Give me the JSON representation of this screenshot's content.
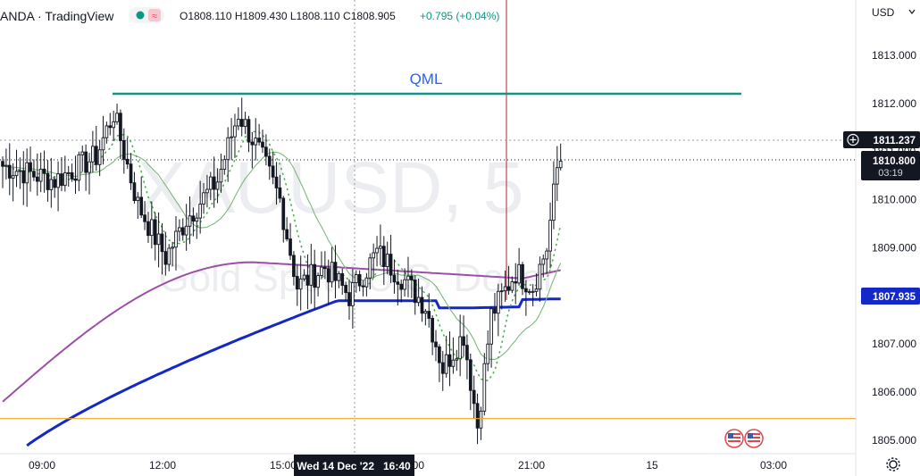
{
  "header": {
    "symbol_text": "ANDA · TradingView",
    "ohlc": "O1808.110 H1809.430 L1808.110 C1808.905",
    "change": "+0.795 (+0.04%)"
  },
  "currency": "USD",
  "watermark": {
    "line1": "XAUUSD, 5",
    "line2": "Gold Spot / U.S. Dollar"
  },
  "annotation": {
    "label": "QML",
    "price": 1812.2
  },
  "crosshair_time_label": "Wed 14 Dec '22   16:40",
  "price_labels": {
    "crosshair": "1811.237",
    "last": "1810.800",
    "countdown": "03:19",
    "ma_200": "1807.935"
  },
  "colors": {
    "up": "#131722",
    "down": "#131722",
    "ma_blue": "#1428c8",
    "ma_purple": "#9c4fa8",
    "ma_green": "#7fb77e",
    "ma_dotted": "#4caf50",
    "qml_line": "#11948a",
    "support": "#f5a623",
    "session_line": "#b22234"
  },
  "chart_data": {
    "type": "candlestick",
    "title": "XAUUSD, 5",
    "subtitle": "Gold Spot / U.S. Dollar",
    "timeframe": "5",
    "ylim": [
      1804.72,
      1814.15
    ],
    "y_ticks": [
      "1805.000",
      "1806.000",
      "1807.000",
      "1808.000",
      "1809.000",
      "1810.000",
      "1811.000",
      "1812.000",
      "1813.000"
    ],
    "x_ticks": [
      "09:00",
      "12:00",
      "15:00",
      "18:00",
      "21:00",
      "15",
      "03:00"
    ],
    "horizontal_lines": [
      {
        "label": "QML",
        "price": 1812.2
      },
      {
        "label": "",
        "price": 1805.45
      }
    ],
    "ma_200": {
      "name": "",
      "last": 1807.935
    },
    "waypoints": [
      {
        "t": 0,
        "p": 1810.7
      },
      {
        "t": 15,
        "p": 1810.4
      },
      {
        "t": 27,
        "p": 1810.9
      },
      {
        "t": 32,
        "p": 1811.8
      },
      {
        "t": 39,
        "p": 1809.9
      },
      {
        "t": 47,
        "p": 1808.8
      },
      {
        "t": 53,
        "p": 1809.6
      },
      {
        "t": 62,
        "p": 1810.4
      },
      {
        "t": 68,
        "p": 1811.8
      },
      {
        "t": 74,
        "p": 1811.0
      },
      {
        "t": 80,
        "p": 1810.0
      },
      {
        "t": 85,
        "p": 1808.2
      },
      {
        "t": 93,
        "p": 1808.6
      },
      {
        "t": 100,
        "p": 1808.0
      },
      {
        "t": 108,
        "p": 1808.9
      },
      {
        "t": 115,
        "p": 1808.4
      },
      {
        "t": 122,
        "p": 1807.8
      },
      {
        "t": 127,
        "p": 1806.5
      },
      {
        "t": 133,
        "p": 1807.2
      },
      {
        "t": 137,
        "p": 1805.3
      },
      {
        "t": 141,
        "p": 1807.6
      },
      {
        "t": 148,
        "p": 1808.5
      },
      {
        "t": 153,
        "p": 1808.2
      },
      {
        "t": 157,
        "p": 1809.0
      },
      {
        "t": 161,
        "p": 1811.2
      }
    ]
  }
}
